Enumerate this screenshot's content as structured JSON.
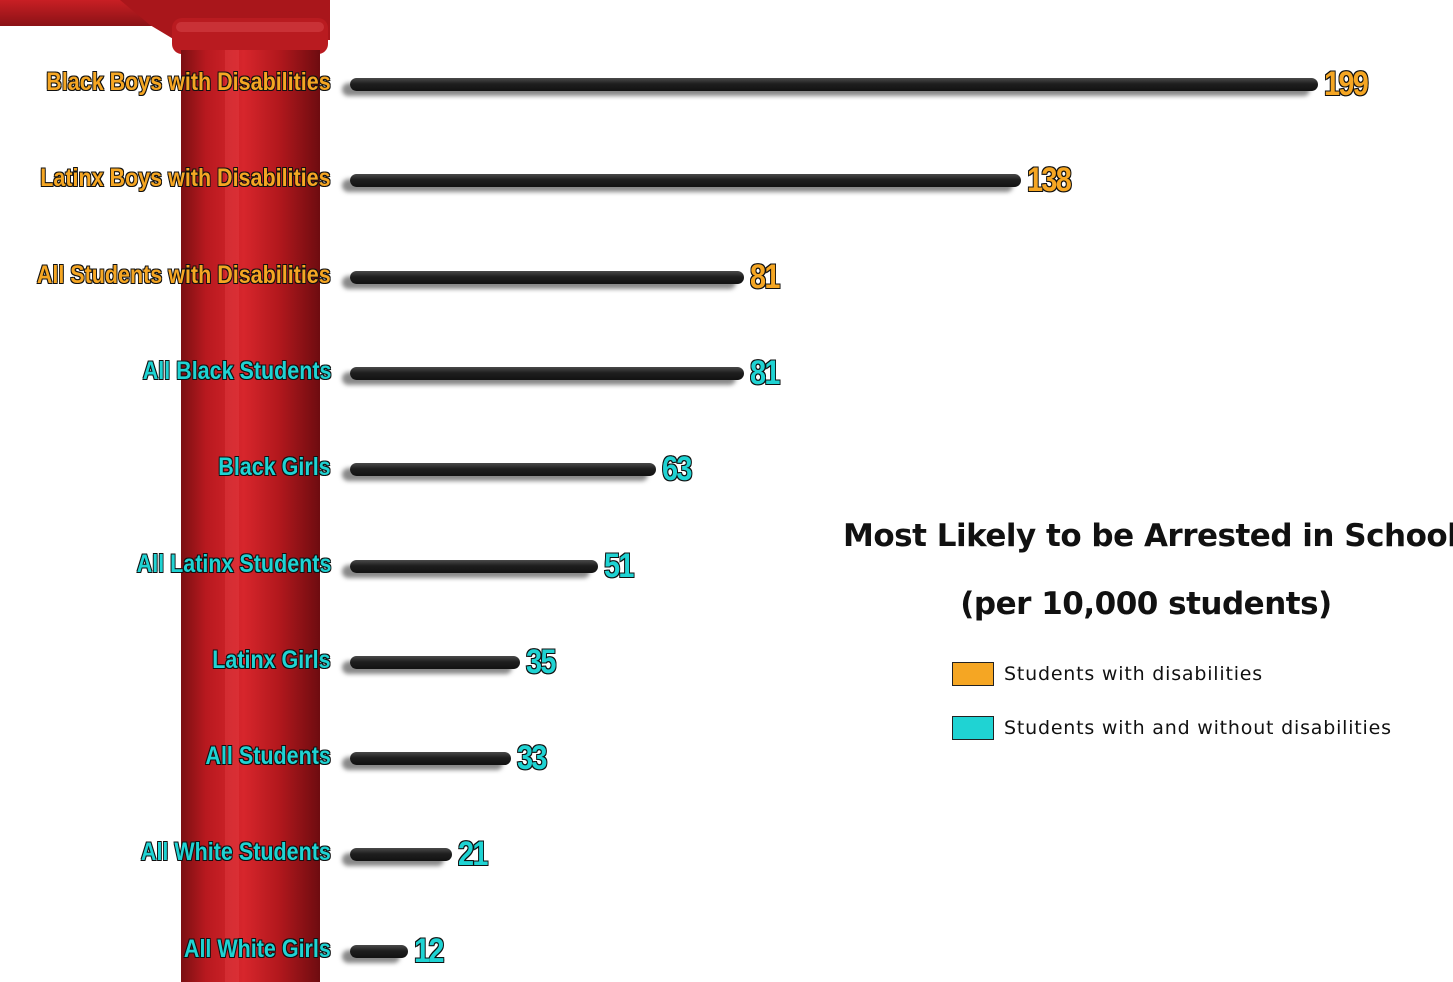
{
  "chart_data": {
    "type": "bar",
    "orientation": "horizontal",
    "title": "Most Likely to be Arrested in School",
    "subtitle": "(per 10,000 students)",
    "categories": [
      "Black Boys with Disabilities",
      "Latinx Boys with Disabilities",
      "All Students with Disabilities",
      "All Black Students",
      "Black Girls",
      "All Latinx Students",
      "Latinx Girls",
      "All Students",
      "All White Students",
      "All White Girls"
    ],
    "values": [
      199,
      138,
      81,
      81,
      63,
      51,
      35,
      33,
      21,
      12
    ],
    "value_labels": [
      "199",
      "138",
      "81",
      "81",
      "63",
      "51",
      "35",
      "33",
      "21",
      "12"
    ],
    "groups": [
      "disabilities",
      "disabilities",
      "disabilities",
      "all",
      "all",
      "all",
      "all",
      "all",
      "all",
      "all"
    ],
    "legend": [
      {
        "key": "disabilities",
        "label": "Students with disabilities",
        "color": "#f5a623"
      },
      {
        "key": "all",
        "label": "Students with and without disabilities",
        "color": "#1fd3d3"
      }
    ],
    "legend_position": "right",
    "bar_color": "#1a1a1a",
    "grid": false
  }
}
